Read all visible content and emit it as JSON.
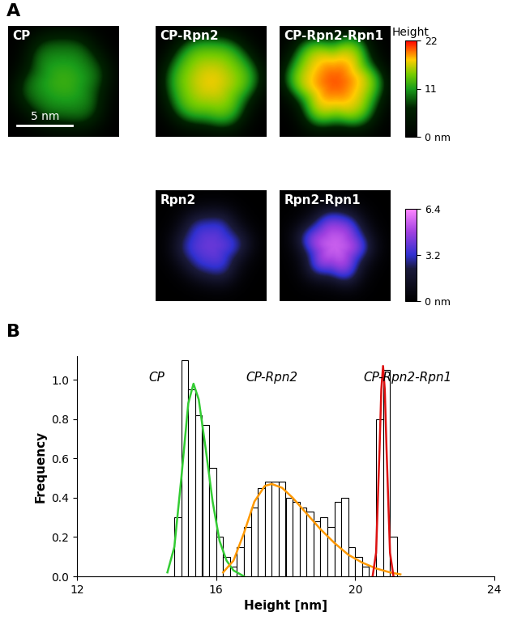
{
  "panel_labels": [
    "A",
    "B"
  ],
  "chart_data": [
    {
      "type": "heightmap",
      "image_size": 10,
      "scale_bar": {
        "length": 5,
        "label": "5 nm"
      },
      "colorbar_title": "Height",
      "groups": [
        {
          "clim": [
            0,
            22
          ],
          "ticks": [
            22,
            11,
            {
              "value": 0,
              "label": "0 nm"
            }
          ],
          "images": [
            {
              "label": "CP",
              "max_height": 12
            },
            {
              "label": "CP-Rpn2",
              "max_height": 17
            },
            {
              "label": "CP-Rpn2-Rpn1",
              "max_height": 20
            }
          ]
        },
        {
          "clim": [
            0,
            6.4
          ],
          "ticks": [
            6.4,
            3.2,
            {
              "value": 0,
              "label": "0 nm"
            }
          ],
          "images": [
            {
              "label": "Rpn2",
              "max_height": 4
            },
            {
              "label": "Rpn2-Rpn1",
              "max_height": 5.5
            }
          ]
        }
      ]
    },
    {
      "type": "histogram",
      "xlabel": "Height [nm]",
      "ylabel": "Frequency",
      "xlim": [
        12,
        24
      ],
      "xticks": [
        12,
        16,
        20,
        24
      ],
      "ylim": [
        0,
        1.12
      ],
      "yticks": [
        {
          "value": 0,
          "label": "0.0"
        },
        {
          "value": 0.2,
          "label": "0.2"
        },
        {
          "value": 0.4,
          "label": "0.4"
        },
        {
          "value": 0.6,
          "label": "0.6"
        },
        {
          "value": 0.8,
          "label": "0.8"
        },
        {
          "value": 1.0,
          "label": "1.0"
        }
      ],
      "bins": [
        14.8,
        15.0,
        15.2,
        15.4,
        15.6,
        15.8,
        16.0,
        16.2,
        16.4,
        16.6,
        16.8,
        17.0,
        17.2,
        17.4,
        17.6,
        17.8,
        18.0,
        18.2,
        18.4,
        18.6,
        18.8,
        19.0,
        19.2,
        19.4,
        19.6,
        19.8,
        20.0,
        20.2,
        20.4,
        20.6,
        20.8,
        21.0,
        21.2
      ],
      "counts": [
        0.3,
        1.1,
        0.95,
        0.82,
        0.77,
        0.55,
        0.2,
        0.1,
        0.05,
        0.15,
        0.25,
        0.35,
        0.45,
        0.48,
        0.48,
        0.48,
        0.4,
        0.38,
        0.35,
        0.33,
        0.28,
        0.3,
        0.25,
        0.38,
        0.4,
        0.15,
        0.1,
        0.05,
        0.0,
        0.8,
        1.05,
        0.2
      ],
      "series": [
        {
          "type": "line",
          "color": "#33cc33",
          "x": [
            14.6,
            14.8,
            15.0,
            15.2,
            15.35,
            15.5,
            15.7,
            15.9,
            16.1,
            16.3,
            16.5,
            16.8
          ],
          "values": [
            0.02,
            0.15,
            0.5,
            0.88,
            0.98,
            0.9,
            0.65,
            0.38,
            0.18,
            0.08,
            0.03,
            0.0
          ]
        },
        {
          "type": "line",
          "color": "#ff9900",
          "x": [
            16.2,
            16.5,
            16.8,
            17.1,
            17.4,
            17.6,
            17.9,
            18.2,
            18.6,
            19.0,
            19.4,
            19.8,
            20.2,
            20.6,
            21.0,
            21.3
          ],
          "values": [
            0.02,
            0.08,
            0.22,
            0.38,
            0.46,
            0.47,
            0.45,
            0.4,
            0.32,
            0.24,
            0.17,
            0.11,
            0.07,
            0.04,
            0.02,
            0.01
          ]
        },
        {
          "type": "line",
          "color": "#dd1111",
          "x": [
            20.5,
            20.6,
            20.7,
            20.75,
            20.8,
            20.85,
            20.9,
            21.0,
            21.1
          ],
          "values": [
            0.0,
            0.12,
            0.65,
            0.95,
            1.07,
            0.95,
            0.65,
            0.12,
            0.0
          ]
        }
      ],
      "annotations": [
        {
          "text": "CP",
          "x": 14.3,
          "y": 0.98
        },
        {
          "text": "CP-Rpn2",
          "x": 17.6,
          "y": 0.98
        },
        {
          "text": "CP-Rpn2-Rpn1",
          "x": 21.5,
          "y": 0.98
        }
      ]
    }
  ]
}
